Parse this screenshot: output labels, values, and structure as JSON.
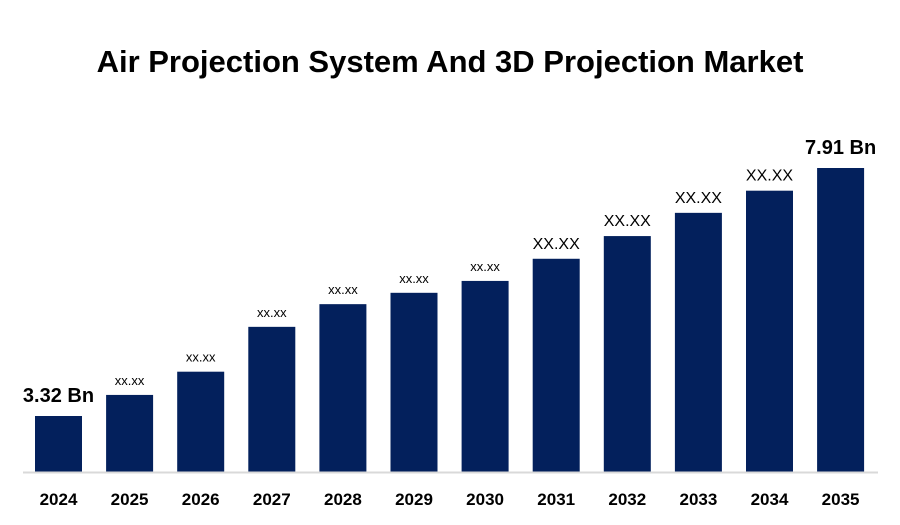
{
  "chart_data": {
    "type": "bar",
    "title": "Air Projection System And 3D Projection Market",
    "categories": [
      "2024",
      "2025",
      "2026",
      "2027",
      "2028",
      "2029",
      "2030",
      "2031",
      "2032",
      "2033",
      "2034",
      "2035"
    ],
    "values": [
      3.32,
      3.71,
      4.14,
      4.97,
      5.39,
      5.6,
      5.82,
      6.23,
      6.65,
      7.08,
      7.49,
      7.91
    ],
    "data_labels": [
      "3.32 Bn",
      "xx.xx",
      "xx.xx",
      "xx.xx",
      "xx.xx",
      "xx.xx",
      "xx.xx",
      "XX.XX",
      "XX.XX",
      "XX.XX",
      "XX.XX",
      "7.91 Bn"
    ],
    "xlabel": "",
    "ylabel": "",
    "ylim": [
      2.28,
      8.5
    ],
    "y_axis_visible": false,
    "grid": false,
    "legend": "none",
    "colors": {
      "bar": "#03205C",
      "baseline": "#D9D9D9",
      "text": "#000000"
    }
  }
}
